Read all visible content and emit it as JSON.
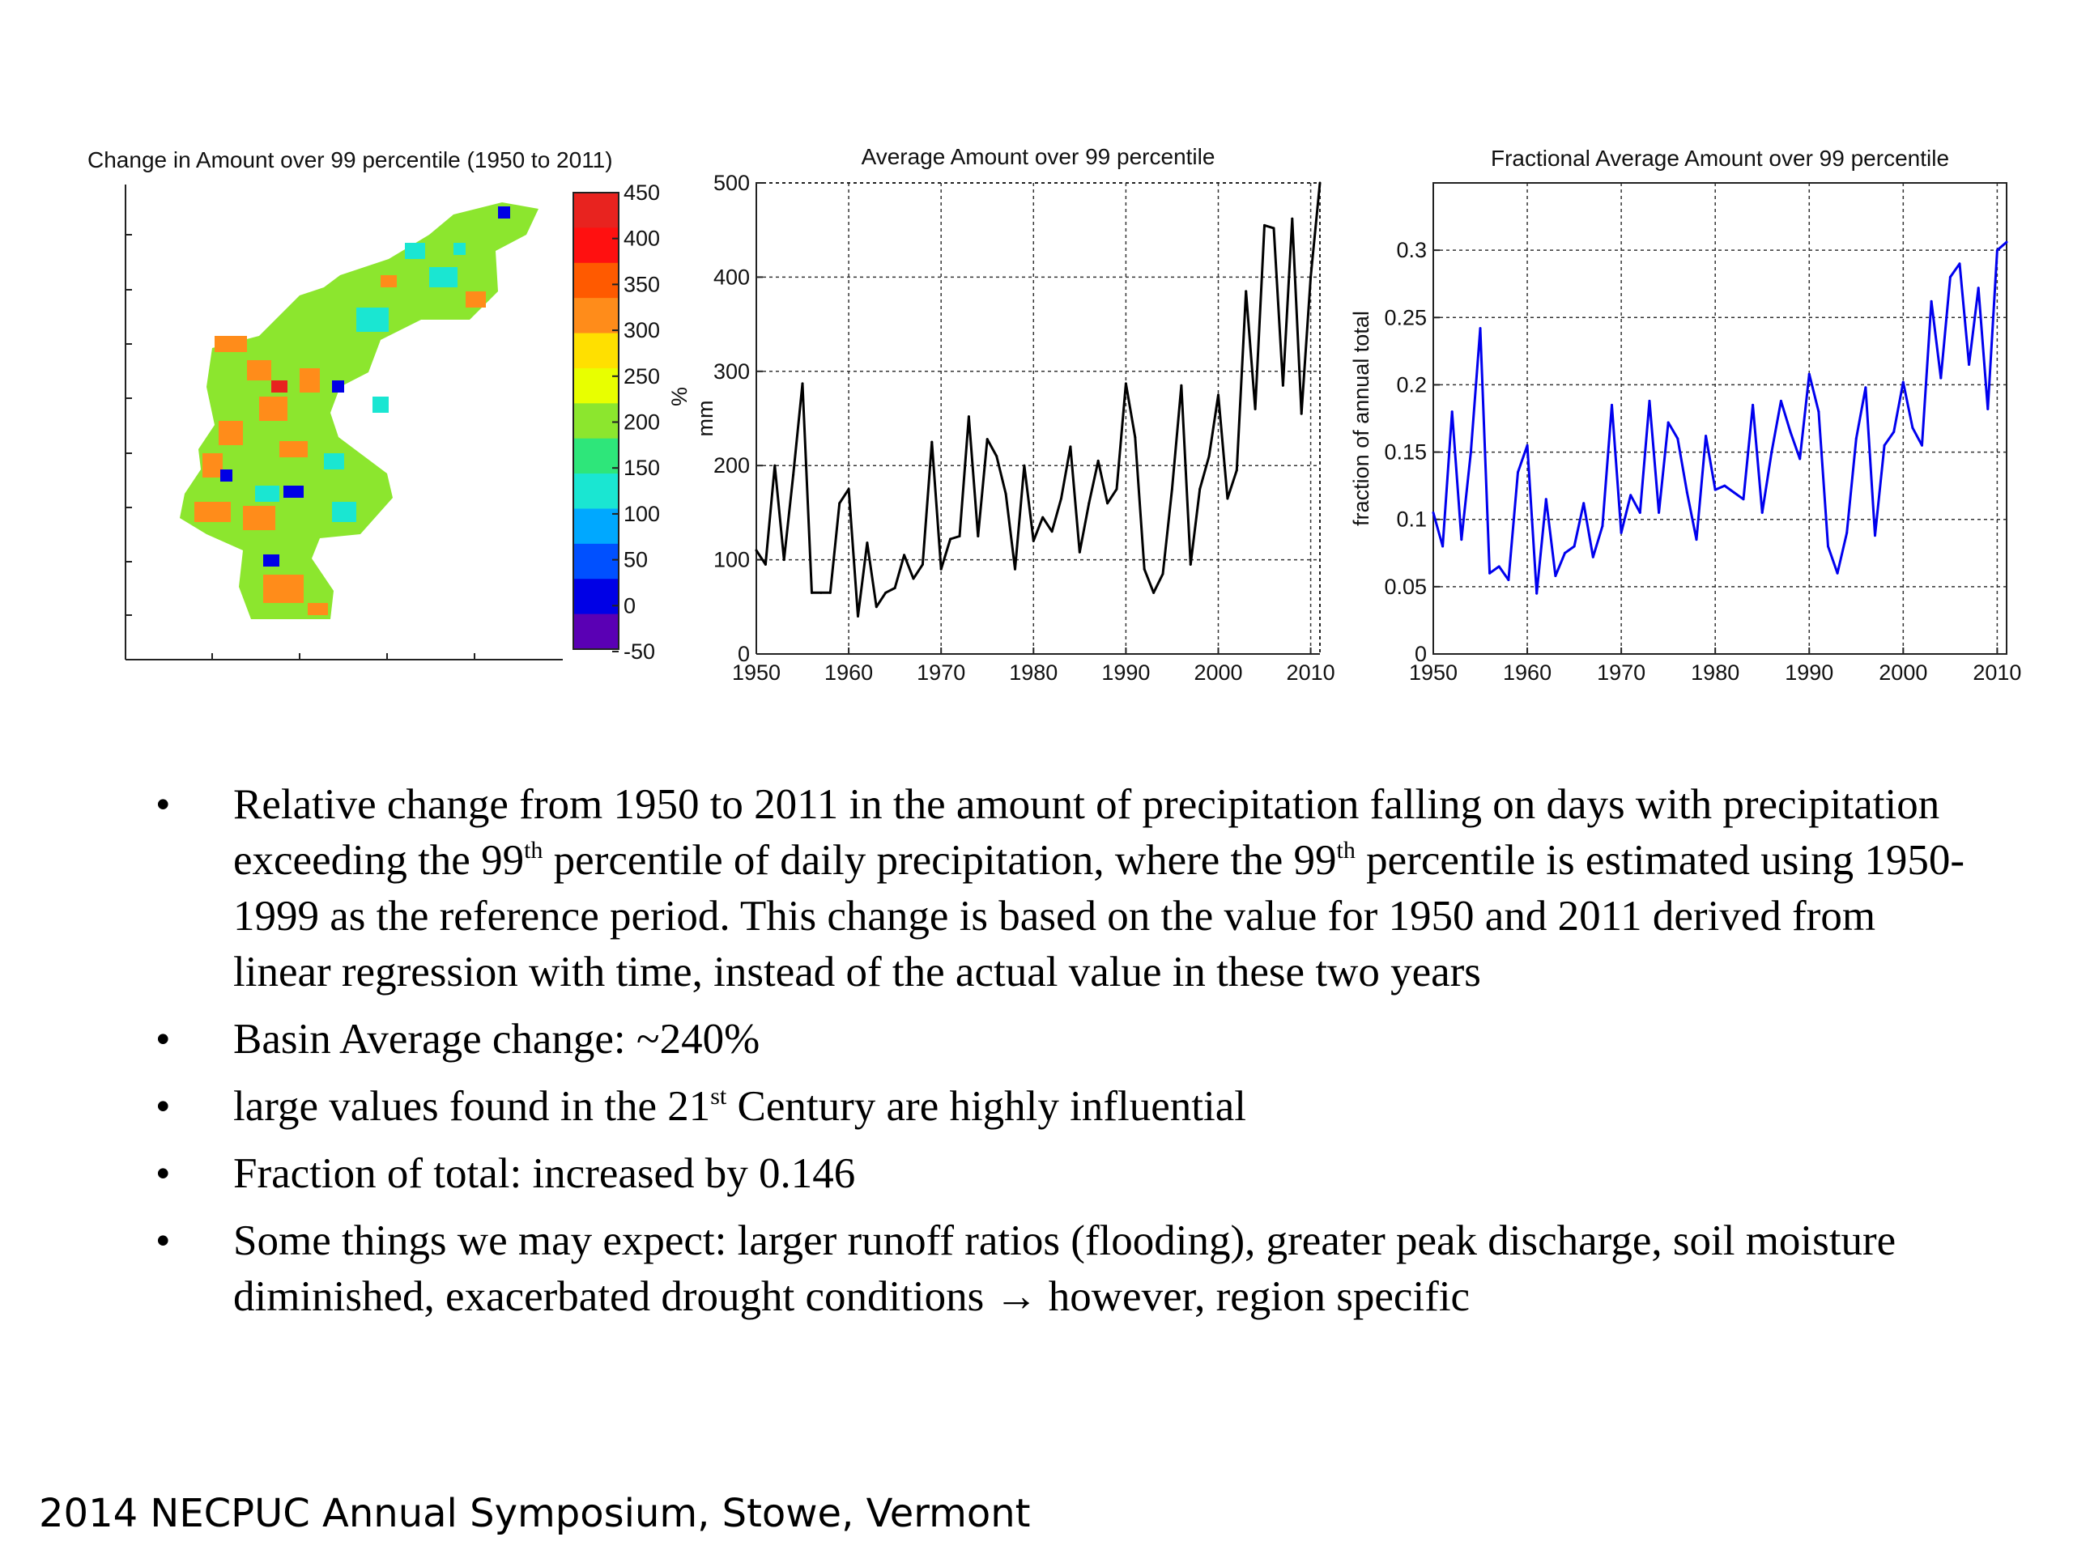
{
  "map_panel": {
    "title": "Change in Amount over 99 percentile (1950 to 2011)",
    "colorbar": {
      "ticks": [
        "450",
        "400",
        "350",
        "300",
        "250",
        "200",
        "150",
        "100",
        "50",
        "0",
        "-50"
      ],
      "unit": "%",
      "colors": [
        "#e8231f",
        "#ff1010",
        "#ff5a00",
        "#ff8c1a",
        "#ffe000",
        "#e8ff00",
        "#8ce62e",
        "#2ee67a",
        "#1ae6d2",
        "#00a8ff",
        "#0050ff",
        "#0000e6",
        "#5a00b4"
      ]
    }
  },
  "chart_data": [
    {
      "type": "line",
      "title": "Average Amount over 99 percentile",
      "xlabel": "",
      "ylabel": "mm",
      "xlim": [
        1950,
        2011
      ],
      "ylim": [
        0,
        500
      ],
      "xticks": [
        1950,
        1960,
        1970,
        1980,
        1990,
        2000,
        2010
      ],
      "yticks": [
        0,
        100,
        200,
        300,
        400,
        500
      ],
      "grid": true,
      "color": "#000000",
      "series": [
        {
          "x": [
            1950,
            1951,
            1952,
            1953,
            1954,
            1955,
            1956,
            1957,
            1958,
            1959,
            1960,
            1961,
            1962,
            1963,
            1964,
            1965,
            1966,
            1967,
            1968,
            1969,
            1970,
            1971,
            1972,
            1973,
            1974,
            1975,
            1976,
            1977,
            1978,
            1979,
            1980,
            1981,
            1982,
            1983,
            1984,
            1985,
            1986,
            1987,
            1988,
            1989,
            1990,
            1991,
            1992,
            1993,
            1994,
            1995,
            1996,
            1997,
            1998,
            1999,
            2000,
            2001,
            2002,
            2003,
            2004,
            2005,
            2006,
            2007,
            2008,
            2009,
            2010,
            2011
          ],
          "values": [
            110,
            95,
            200,
            100,
            190,
            287,
            65,
            65,
            65,
            160,
            175,
            40,
            118,
            50,
            65,
            70,
            105,
            80,
            95,
            225,
            90,
            122,
            125,
            252,
            125,
            228,
            210,
            170,
            90,
            200,
            120,
            145,
            130,
            165,
            220,
            108,
            160,
            205,
            160,
            175,
            287,
            230,
            90,
            65,
            85,
            175,
            285,
            95,
            175,
            210,
            275,
            165,
            195,
            385,
            260,
            455,
            452,
            285,
            462,
            255,
            400,
            500
          ]
        }
      ]
    },
    {
      "type": "line",
      "title": "Fractional Average Amount over 99 percentile",
      "xlabel": "",
      "ylabel": "fraction of annual total",
      "xlim": [
        1950,
        2011
      ],
      "ylim": [
        0,
        0.35
      ],
      "xticks": [
        1950,
        1960,
        1970,
        1980,
        1990,
        2000,
        2010
      ],
      "yticks": [
        0,
        0.05,
        0.1,
        0.15,
        0.2,
        0.25,
        0.3
      ],
      "grid": true,
      "color": "#0000ee",
      "series": [
        {
          "x": [
            1950,
            1951,
            1952,
            1953,
            1954,
            1955,
            1956,
            1957,
            1958,
            1959,
            1960,
            1961,
            1962,
            1963,
            1964,
            1965,
            1966,
            1967,
            1968,
            1969,
            1970,
            1971,
            1972,
            1973,
            1974,
            1975,
            1976,
            1977,
            1978,
            1979,
            1980,
            1981,
            1982,
            1983,
            1984,
            1985,
            1986,
            1987,
            1988,
            1989,
            1990,
            1991,
            1992,
            1993,
            1994,
            1995,
            1996,
            1997,
            1998,
            1999,
            2000,
            2001,
            2002,
            2003,
            2004,
            2005,
            2006,
            2007,
            2008,
            2009,
            2010,
            2011
          ],
          "values": [
            0.105,
            0.08,
            0.18,
            0.085,
            0.15,
            0.242,
            0.06,
            0.065,
            0.055,
            0.135,
            0.155,
            0.045,
            0.115,
            0.058,
            0.075,
            0.08,
            0.112,
            0.072,
            0.095,
            0.185,
            0.09,
            0.118,
            0.105,
            0.188,
            0.105,
            0.172,
            0.16,
            0.12,
            0.085,
            0.162,
            0.122,
            0.125,
            0.12,
            0.115,
            0.185,
            0.105,
            0.15,
            0.188,
            0.165,
            0.145,
            0.208,
            0.18,
            0.08,
            0.06,
            0.09,
            0.16,
            0.198,
            0.088,
            0.155,
            0.165,
            0.202,
            0.168,
            0.155,
            0.262,
            0.205,
            0.28,
            0.29,
            0.215,
            0.272,
            0.182,
            0.3,
            0.306
          ]
        }
      ]
    }
  ],
  "bullets": [
    {
      "symbol": "•",
      "parts": [
        "Relative change from 1950 to 2011 in the amount of precipitation falling on days with precipitation exceeding the 99",
        "th",
        " percentile of daily precipitation, where the 99",
        "th",
        " percentile is estimated using 1950-1999 as the reference period.  This change is based on the value for 1950 and 2011 derived from linear regression with time, instead of the actual value in these two years"
      ]
    },
    {
      "symbol": "•",
      "parts": [
        "Basin Average change: ~240%"
      ]
    },
    {
      "symbol": "•",
      "parts": [
        "large values found in the 21",
        "st",
        " Century are highly influential"
      ]
    },
    {
      "symbol": "•",
      "parts": [
        "Fraction of total: increased by 0.146"
      ]
    },
    {
      "symbol": "•",
      "parts": [
        "Some things we may expect: larger runoff ratios (flooding), greater peak discharge, soil moisture diminished, exacerbated drought conditions ",
        "→",
        " however, region specific"
      ]
    }
  ],
  "footer": "2014 NECPUC Annual Symposium, Stowe, Vermont"
}
